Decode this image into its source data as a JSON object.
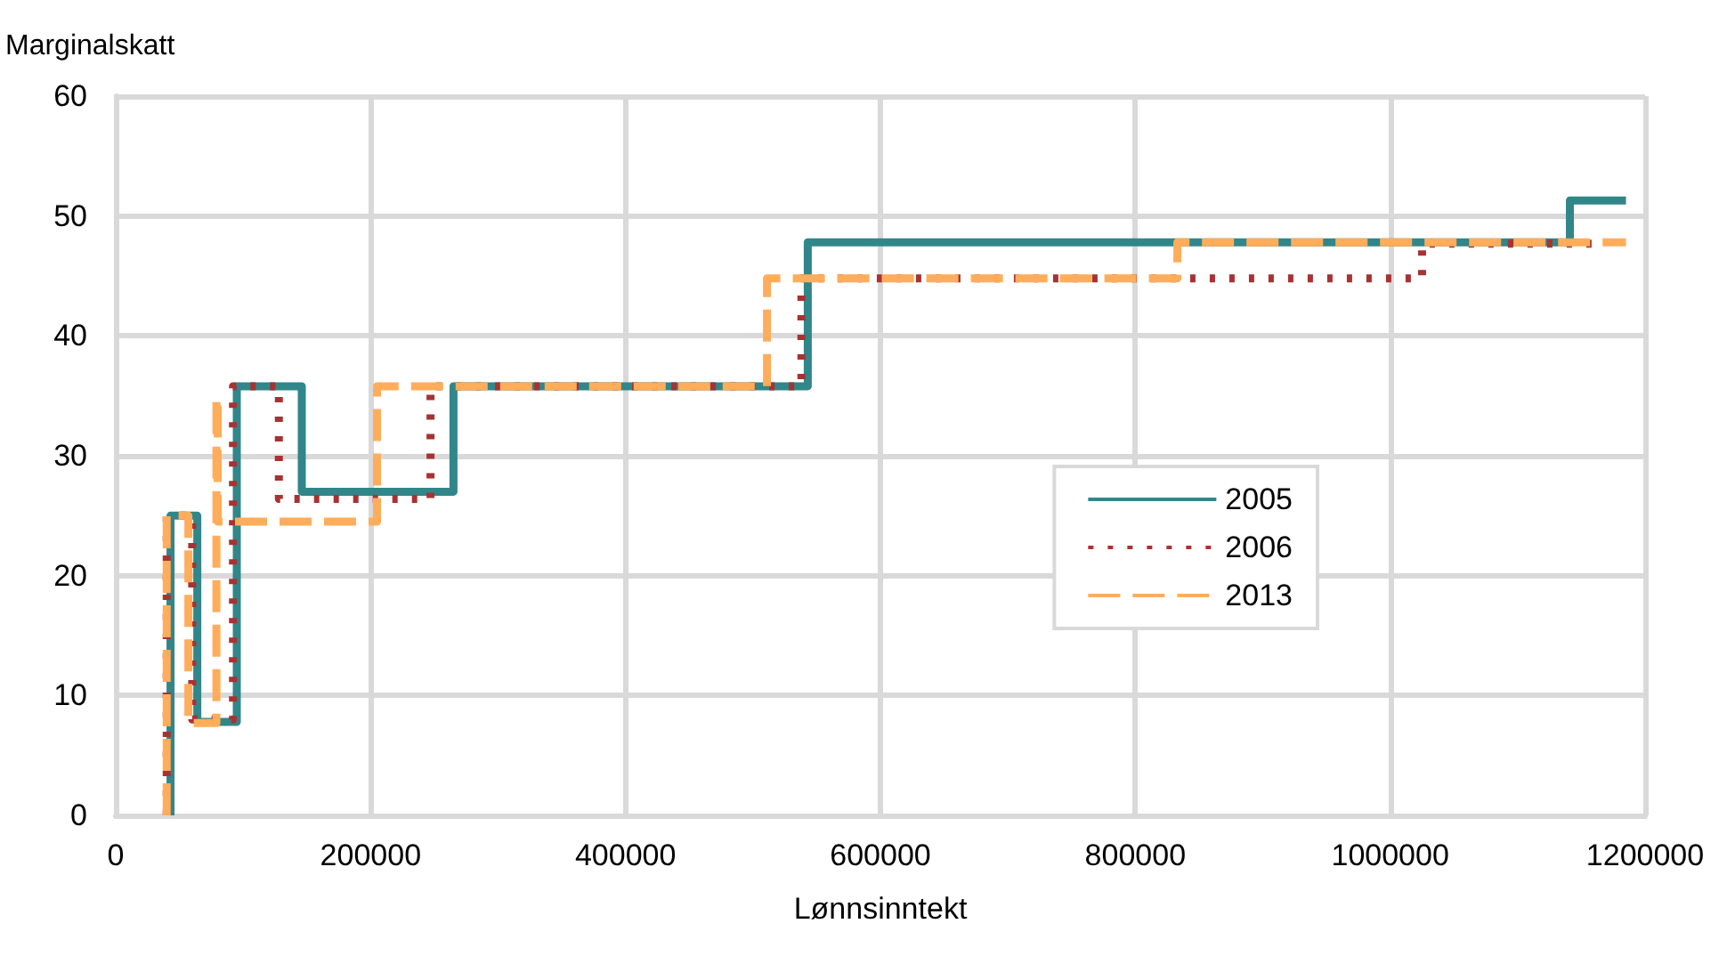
{
  "chart_data": {
    "type": "step",
    "xlabel": "Lønnsinntekt",
    "ylabel": "Marginalskatt",
    "xlim": [
      0,
      1200000
    ],
    "xticks": [
      0,
      200000,
      400000,
      600000,
      800000,
      1000000,
      1200000
    ],
    "ylim": [
      0,
      60
    ],
    "yticks": [
      0,
      10,
      20,
      30,
      40,
      50,
      60
    ],
    "grid": true,
    "legend": "right",
    "marker": "none",
    "series": [
      {
        "name": "2005",
        "color": "#31868a",
        "line_style": "solid",
        "x": [
          43000,
          43000,
          64000,
          95000,
          146000,
          265000,
          543000,
          1141000,
          1185000
        ],
        "values": [
          0,
          25,
          7.8,
          35.8,
          27,
          35.8,
          47.8,
          51.3,
          51.3
        ]
      },
      {
        "name": "2006",
        "color": "#a83232",
        "line_style": "dotted",
        "x": [
          40000,
          40000,
          60000,
          92000,
          128000,
          247000,
          538000,
          1025000,
          1162000
        ],
        "values": [
          0,
          25,
          8,
          35.8,
          26.4,
          35.8,
          44.8,
          47.7,
          47.7
        ]
      },
      {
        "name": "2013",
        "color": "#ffad5b",
        "line_style": "dashed",
        "x": [
          40000,
          40000,
          57000,
          79000,
          80000,
          205000,
          511000,
          833000,
          1185000
        ],
        "values": [
          0,
          25,
          7.7,
          34.8,
          24.5,
          35.8,
          44.8,
          47.8,
          47.8
        ]
      }
    ]
  }
}
